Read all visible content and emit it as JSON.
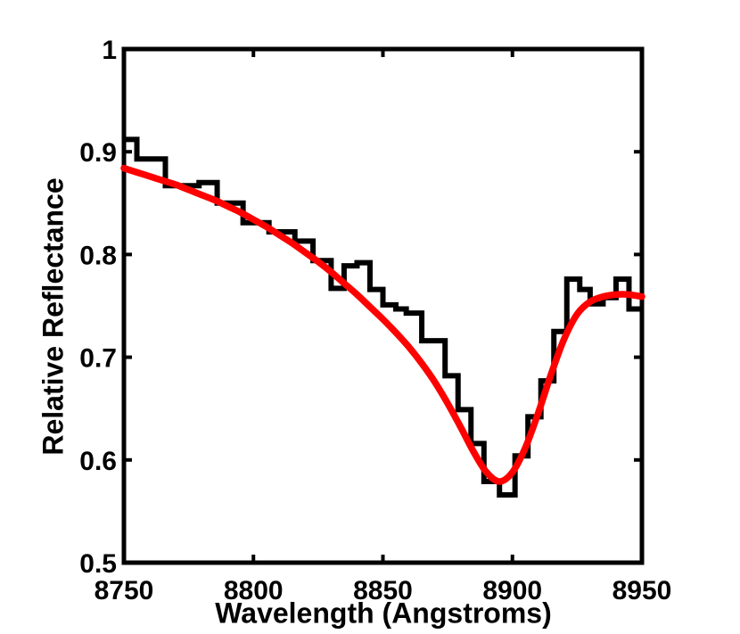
{
  "colors": {
    "background": "#ffffff",
    "axis": "#000000",
    "observed_line": "#000000",
    "fit_line": "#ff0000"
  },
  "chart_data": {
    "type": "line",
    "title": "",
    "xlabel": "Wavelength (Angstroms)",
    "ylabel": "Relative Reflectance",
    "xlim": [
      8750,
      8950
    ],
    "ylim": [
      0.5,
      1.0
    ],
    "grid": false,
    "legend": "none",
    "x_ticks": {
      "values": [
        8750,
        8800,
        8850,
        8900,
        8950
      ],
      "labels": [
        "8750",
        "8800",
        "8850",
        "8900",
        "8950"
      ]
    },
    "y_ticks": {
      "values": [
        0.5,
        0.6,
        0.7,
        0.8,
        0.9,
        1.0
      ],
      "labels": [
        "0.5",
        "0.6",
        "0.7",
        "0.8",
        "0.9",
        "1"
      ]
    },
    "series": [
      {
        "name": "step",
        "style": "step",
        "color": "#000000",
        "bin_edges": [
          8750,
          8755,
          8766,
          8779,
          8786,
          8796,
          8806,
          8816,
          8823,
          8830,
          8835,
          8840,
          8845,
          8850,
          8855,
          8859,
          8865,
          8874,
          8879,
          8884,
          8889,
          8895,
          8901,
          8906,
          8911,
          8916,
          8921,
          8926,
          8930,
          8935,
          8940,
          8945,
          8950
        ],
        "values": [
          0.912,
          0.893,
          0.867,
          0.87,
          0.85,
          0.831,
          0.822,
          0.813,
          0.794,
          0.767,
          0.789,
          0.792,
          0.766,
          0.751,
          0.747,
          0.743,
          0.716,
          0.682,
          0.649,
          0.616,
          0.579,
          0.566,
          0.604,
          0.642,
          0.677,
          0.725,
          0.776,
          0.766,
          0.752,
          0.758,
          0.776,
          0.747
        ]
      },
      {
        "name": "fit",
        "style": "smooth",
        "color": "#ff0000",
        "x": [
          8750,
          8755,
          8760,
          8765,
          8770,
          8775,
          8780,
          8785,
          8790,
          8795,
          8800,
          8805,
          8810,
          8815,
          8820,
          8825,
          8830,
          8835,
          8840,
          8845,
          8850,
          8855,
          8860,
          8865,
          8870,
          8875,
          8880,
          8885,
          8890,
          8895,
          8900,
          8905,
          8910,
          8915,
          8920,
          8925,
          8930,
          8935,
          8940,
          8945,
          8950
        ],
        "y": [
          0.884,
          0.88,
          0.876,
          0.872,
          0.868,
          0.863,
          0.858,
          0.853,
          0.847,
          0.841,
          0.834,
          0.827,
          0.819,
          0.811,
          0.802,
          0.793,
          0.783,
          0.772,
          0.761,
          0.749,
          0.737,
          0.724,
          0.71,
          0.694,
          0.676,
          0.655,
          0.632,
          0.608,
          0.588,
          0.579,
          0.588,
          0.612,
          0.646,
          0.684,
          0.718,
          0.742,
          0.754,
          0.759,
          0.761,
          0.761,
          0.759
        ]
      }
    ]
  }
}
